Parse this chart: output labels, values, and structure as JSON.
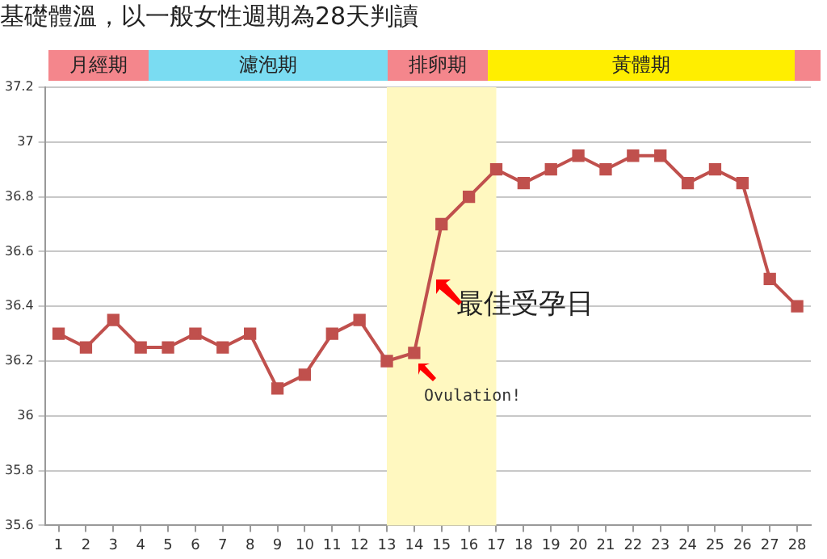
{
  "chart_data": {
    "type": "line",
    "title": "基礎體溫，以一般女性週期為28天判讀",
    "x": [
      1,
      2,
      3,
      4,
      5,
      6,
      7,
      8,
      9,
      10,
      11,
      12,
      13,
      14,
      15,
      16,
      17,
      18,
      19,
      20,
      21,
      22,
      23,
      24,
      25,
      26,
      27,
      28
    ],
    "series": [
      {
        "color": "#c0504d",
        "values": [
          36.3,
          36.25,
          36.35,
          36.25,
          36.25,
          36.3,
          36.25,
          36.3,
          36.1,
          36.15,
          36.3,
          36.35,
          36.2,
          36.23,
          36.7,
          36.8,
          36.9,
          36.85,
          36.9,
          36.95,
          36.9,
          36.95,
          36.95,
          36.85,
          36.9,
          36.85,
          36.5,
          36.4
        ]
      }
    ],
    "xlim": [
      0.5,
      28.5
    ],
    "xticks": [
      1,
      2,
      3,
      4,
      5,
      6,
      7,
      8,
      9,
      10,
      11,
      12,
      13,
      14,
      15,
      16,
      17,
      18,
      19,
      20,
      21,
      22,
      23,
      24,
      25,
      26,
      27,
      28
    ],
    "ylim": [
      35.6,
      37.2
    ],
    "yticks": [
      35.6,
      35.8,
      36,
      36.2,
      36.4,
      36.6,
      36.8,
      37,
      37.2
    ],
    "bands": [
      {
        "axis": "x",
        "from": 13,
        "to": 17,
        "color": "#fff8c0"
      }
    ],
    "annotations": [
      "月經期",
      "濾泡期",
      "排卵期",
      "黃體期",
      "最佳受孕日",
      {
        "text": "Ovulation!",
        "x": 14,
        "y": 36.23
      }
    ],
    "grid": "y",
    "marker": "square",
    "line_style": "solid"
  }
}
